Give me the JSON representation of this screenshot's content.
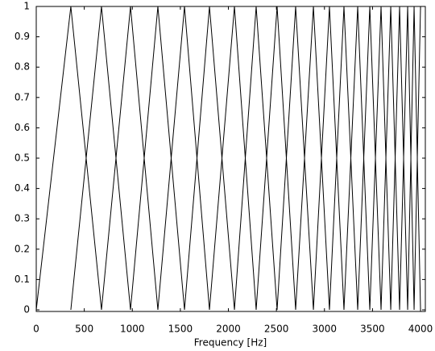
{
  "chart_data": {
    "type": "line",
    "xlabel": "Frequency [Hz]",
    "x": [
      0,
      360,
      679,
      981,
      1266,
      1543,
      1803,
      2063,
      2289,
      2507,
      2700,
      2885,
      3052,
      3203,
      3346,
      3472,
      3589,
      3690,
      3782,
      3866,
      3933,
      4000
    ],
    "series": [
      {
        "color": "#000000",
        "values": [
          0,
          1,
          0,
          1,
          0,
          1,
          0,
          1,
          0,
          1,
          0,
          1,
          0,
          1,
          0,
          1,
          0,
          1,
          0,
          1,
          0,
          1
        ]
      },
      {
        "color": "#000000",
        "values": [
          null,
          0,
          1,
          0,
          1,
          0,
          1,
          0,
          1,
          0,
          1,
          0,
          1,
          0,
          1,
          0,
          1,
          0,
          1,
          0,
          1,
          0
        ]
      }
    ],
    "xlim": [
      0,
      4050
    ],
    "xticks": [
      0,
      500,
      1000,
      1500,
      2000,
      2500,
      3000,
      3500,
      4000
    ],
    "ylim": [
      0,
      1
    ],
    "yticks": [
      0,
      0.1,
      0.2,
      0.3,
      0.4,
      0.5,
      0.6,
      0.7,
      0.8,
      0.9,
      1
    ]
  }
}
